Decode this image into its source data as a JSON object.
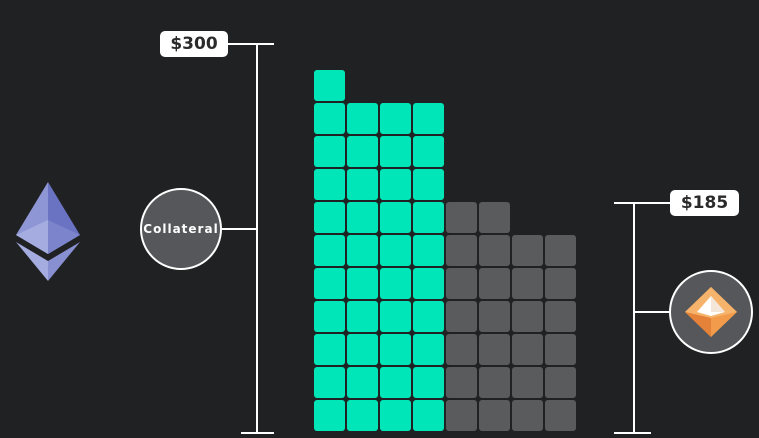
{
  "labels": {
    "total_value": "$300",
    "borrowed_value": "$185",
    "collateral": "Collateral"
  },
  "colors": {
    "background": "#202122",
    "green_block": "#00e6b8",
    "gray_block": "#5a5b5d",
    "bracket": "#ffffff"
  },
  "icons": {
    "left": "ethereum-icon",
    "right": "orange-diamond-token-icon"
  },
  "blocks": {
    "green_column_heights": [
      11,
      10,
      10,
      10
    ],
    "gray_column_heights": [
      7,
      7,
      6,
      6
    ]
  }
}
